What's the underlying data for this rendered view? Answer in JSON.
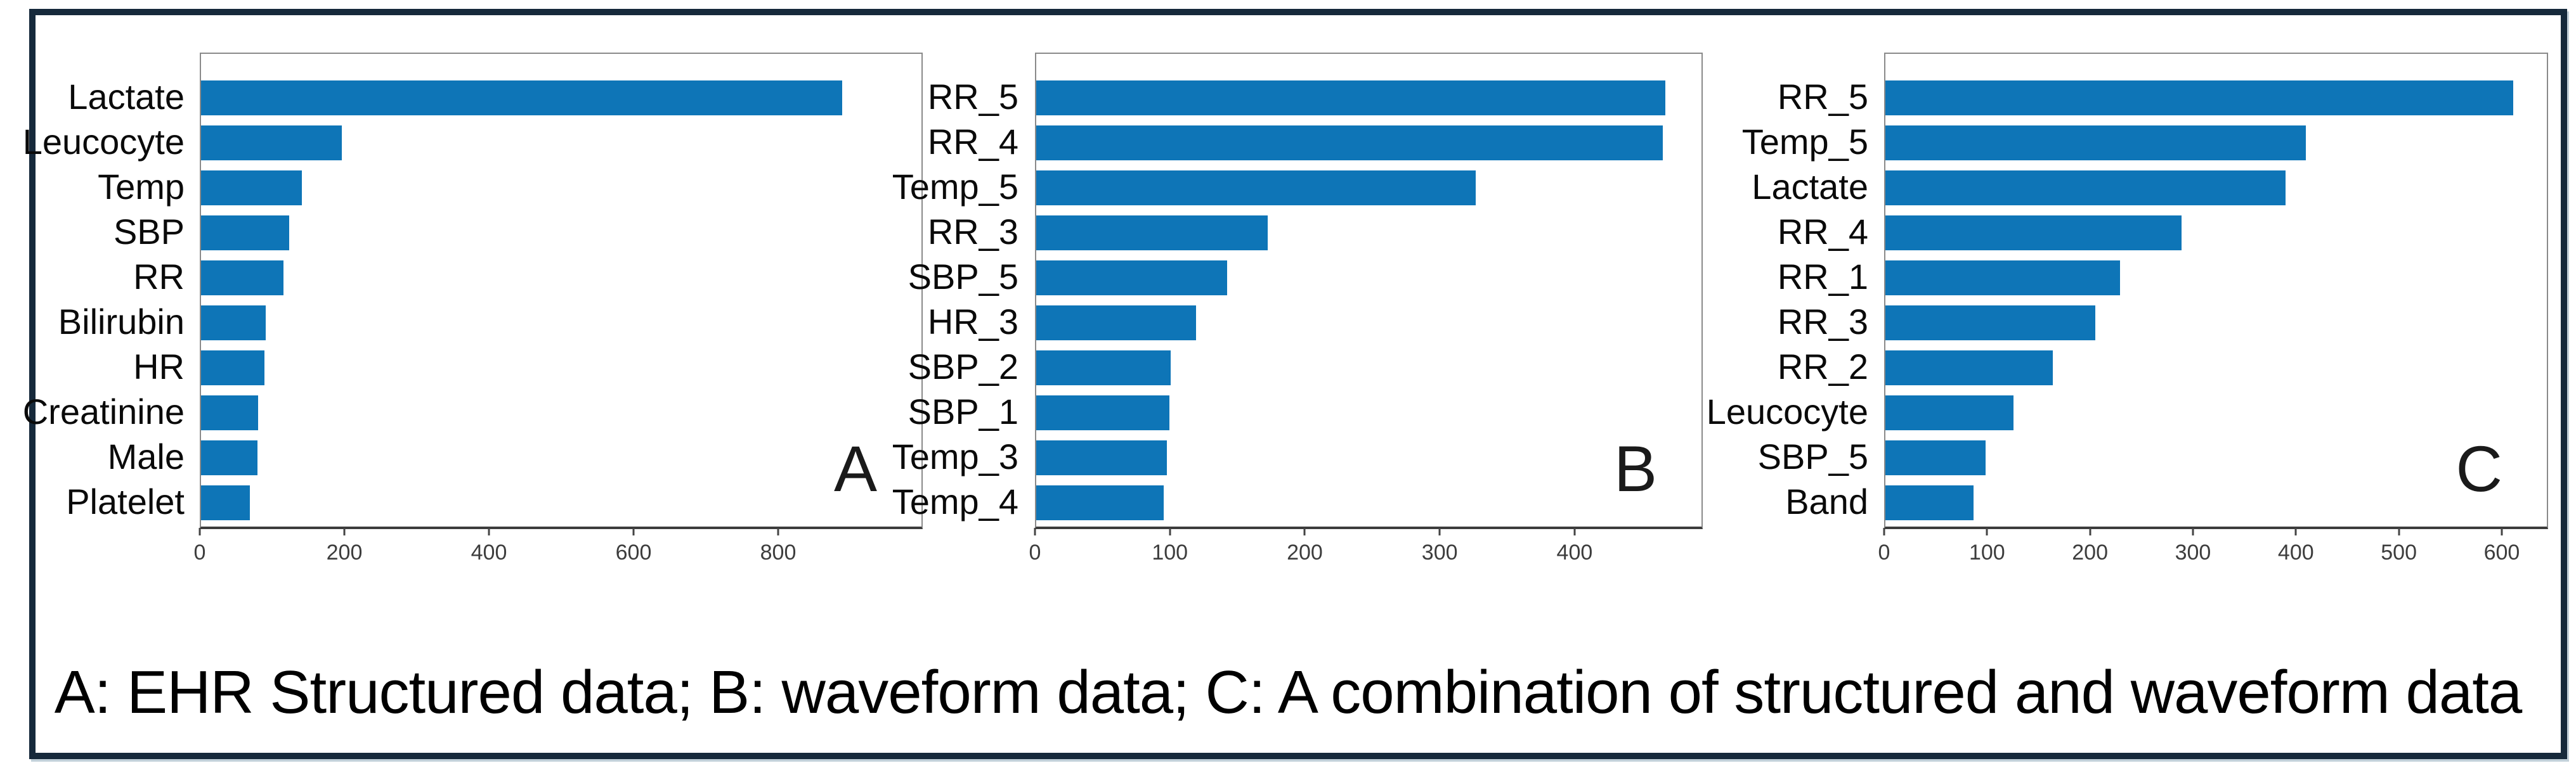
{
  "figure_caption": "A: EHR Structured data; B: waveform data; C: A combination of structured and waveform data",
  "colors": {
    "bar": "#0e75b7",
    "frame_border": "#16293b",
    "axis": "#3c3c3c",
    "spine": "#8a8a8a"
  },
  "chart_data": [
    {
      "type": "bar",
      "orientation": "horizontal",
      "panel_label": "A",
      "title": "",
      "xlabel": "",
      "ylabel": "",
      "categories": [
        "Lactate",
        "Leucocyte",
        "Temp",
        "SBP",
        "RR",
        "Bilirubin",
        "HR",
        "Creatinine",
        "Male",
        "Platelet"
      ],
      "values": [
        890,
        195,
        140,
        122,
        114,
        90,
        88,
        79,
        78,
        68
      ],
      "xticks": [
        0,
        200,
        400,
        600,
        800
      ],
      "xlim": [
        0,
        1000
      ],
      "grid": false,
      "legend": "none"
    },
    {
      "type": "bar",
      "orientation": "horizontal",
      "panel_label": "B",
      "title": "",
      "xlabel": "",
      "ylabel": "",
      "categories": [
        "RR_5",
        "RR_4",
        "Temp_5",
        "RR_3",
        "SBP_5",
        "HR_3",
        "SBP_2",
        "SBP_1",
        "Temp_3",
        "Temp_4"
      ],
      "values": [
        468,
        466,
        327,
        172,
        142,
        119,
        100,
        99,
        97,
        95
      ],
      "xticks": [
        0,
        100,
        200,
        300,
        400
      ],
      "xlim": [
        0,
        495
      ],
      "grid": false,
      "legend": "none"
    },
    {
      "type": "bar",
      "orientation": "horizontal",
      "panel_label": "C",
      "title": "",
      "xlabel": "",
      "ylabel": "",
      "categories": [
        "RR_5",
        "Temp_5",
        "Lactate",
        "RR_4",
        "RR_1",
        "RR_3",
        "RR_2",
        "Leucocyte",
        "SBP_5",
        "Band"
      ],
      "values": [
        612,
        410,
        390,
        289,
        229,
        205,
        163,
        125,
        98,
        86
      ],
      "xticks": [
        0,
        100,
        200,
        300,
        400,
        500,
        600
      ],
      "xlim": [
        0,
        645
      ],
      "grid": false,
      "legend": "none"
    }
  ]
}
